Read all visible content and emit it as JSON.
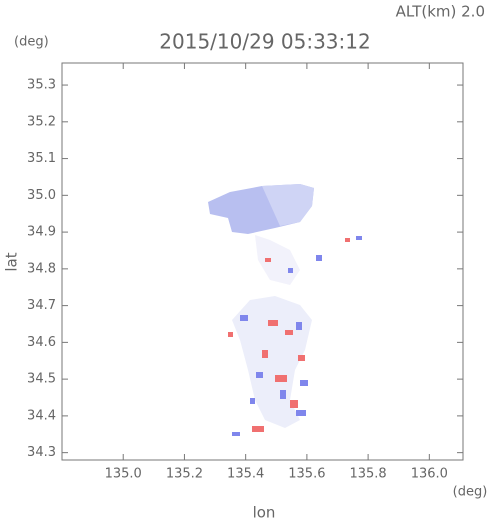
{
  "chart_data": {
    "type": "map",
    "title": "2015/10/29 05:33:12",
    "annotation": "ALT(km) 2.0",
    "x_label": "lon",
    "x_unit": "(deg)",
    "y_label": "lat",
    "y_unit": "(deg)",
    "xlim": [
      134.8,
      136.11
    ],
    "ylim": [
      34.28,
      35.36
    ],
    "xticks": [
      {
        "value": 135.0,
        "label": "135.0"
      },
      135.2,
      135.4,
      135.6,
      135.8,
      {
        "value": 136.0,
        "label": "136.0"
      }
    ],
    "yticks": [
      35.3,
      35.2,
      35.1,
      {
        "value": 35.0,
        "label": "35.0"
      },
      34.9,
      34.8,
      34.7,
      34.6,
      34.5,
      34.4,
      34.3
    ]
  }
}
